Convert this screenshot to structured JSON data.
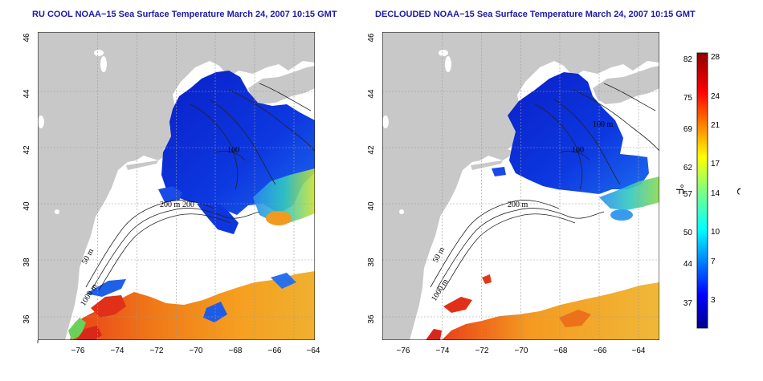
{
  "panels": [
    {
      "title": "RU COOL NOAA−15 Sea Surface Temperature March 24, 2007 10:15 GMT",
      "contour_labels": [
        "50 m",
        "200 m",
        "200",
        "1000 m",
        "100"
      ]
    },
    {
      "title": "DECLOUDED NOAA−15 Sea Surface Temperature March 24, 2007 10:15 GMT",
      "contour_labels": [
        "50 m",
        "200 m",
        "1000 m",
        "100 m",
        "100"
      ]
    }
  ],
  "axes": {
    "lon_ticks": [
      "−76",
      "−74",
      "−72",
      "−70",
      "−68",
      "−66",
      "−64"
    ],
    "lat_ticks": [
      "36",
      "38",
      "40",
      "42",
      "44",
      "46"
    ]
  },
  "colorbar": {
    "fahrenheit_label": "°F",
    "celsius_label": "°C",
    "fahrenheit_ticks": [
      "82",
      "75",
      "69",
      "62",
      "57",
      "50",
      "44",
      "37"
    ],
    "celsius_ticks": [
      "28",
      "24",
      "21",
      "17",
      "14",
      "10",
      "7",
      "3"
    ]
  },
  "colors": {
    "land": "#c8c8c8",
    "ocean_cold": "#0a2fd8",
    "ocean_warm": "#f08a10",
    "title": "#1a1aa8"
  }
}
